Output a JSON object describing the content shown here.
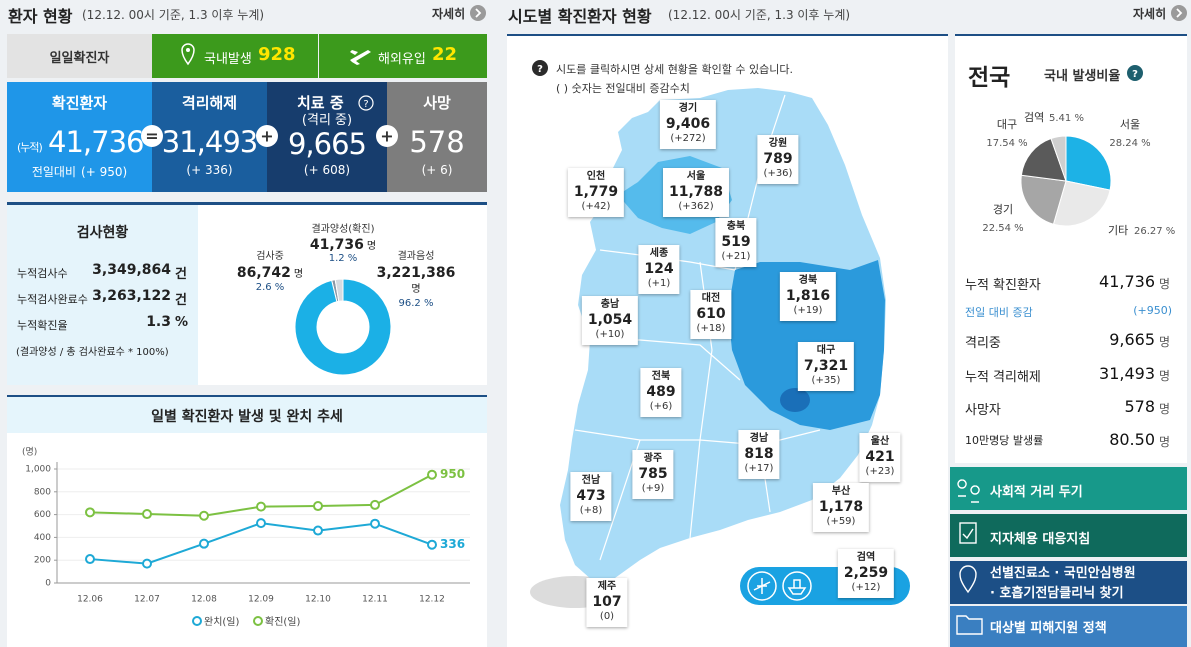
{
  "patient_status": {
    "title": "환자 현황",
    "subtitle": "(12.12. 00시 기준, 1.3 이후 누계)",
    "more": "자세히",
    "daily": {
      "label": "일일확진자",
      "domestic_label": "국내발생",
      "domestic": "928",
      "overseas_label": "해외유입",
      "overseas": "22"
    },
    "boxes": [
      {
        "title": "확진환자",
        "prefix": "(누적)",
        "value": "41,736",
        "delta_label": "전일대비",
        "delta": "(+ 950)"
      },
      {
        "title": "격리해제",
        "value": "31,493",
        "delta": "(+ 336)"
      },
      {
        "title": "치료 중",
        "help": "?",
        "subtitle": "(격리 중)",
        "value": "9,665",
        "delta": "(+ 608)"
      },
      {
        "title": "사망",
        "value": "578",
        "delta": "(+ 6)"
      }
    ],
    "operators": [
      "=",
      "+",
      "+"
    ]
  },
  "tests": {
    "title": "검사현황",
    "rows": [
      {
        "label": "누적검사수",
        "value": "3,349,864",
        "unit": "건"
      },
      {
        "label": "누적검사완료수",
        "value": "3,263,122",
        "unit": "건"
      },
      {
        "label": "누적확진율",
        "value": "1.3",
        "unit": "%"
      }
    ],
    "note": "(결과양성 / 총 검사완료수 * 100%)"
  },
  "chart_data": [
    {
      "type": "pie",
      "donut": true,
      "categories": [
        "결과양성(확진)",
        "검사중",
        "결과음성"
      ],
      "values": [
        1.2,
        2.6,
        96.2
      ],
      "value_labels": [
        "1.2 %",
        "2.6 %",
        "96.2 %"
      ],
      "counts": [
        "41,736",
        "86,742",
        "3,221,386"
      ],
      "count_unit": "명",
      "colors": [
        "#8a97a6",
        "#d6dbe1",
        "#1bb0e6"
      ]
    },
    {
      "type": "line",
      "title": "일별 확진환자 발생 및 완치 추세",
      "y_label": "(명)",
      "categories": [
        "12.06",
        "12.07",
        "12.08",
        "12.09",
        "12.10",
        "12.11",
        "12.12"
      ],
      "series": [
        {
          "name": "완치(일)",
          "color": "#1ea9d6",
          "values": [
            210,
            170,
            345,
            525,
            460,
            520,
            336
          ]
        },
        {
          "name": "확진(일)",
          "color": "#7cc142",
          "values": [
            620,
            605,
            590,
            670,
            675,
            685,
            950
          ]
        }
      ],
      "ylim": [
        0,
        1000
      ],
      "yticks": [
        0,
        200,
        400,
        600,
        800,
        {
          "value": 1000,
          "label": "1,000"
        }
      ],
      "grid": true
    },
    {
      "type": "pie",
      "title": "국내 발생비율",
      "categories": [
        "서울",
        "기타",
        "경기",
        "대구",
        "검역"
      ],
      "values": [
        28.24,
        26.27,
        22.54,
        17.54,
        5.41
      ],
      "value_labels": [
        "28.24 %",
        "26.27 %",
        "22.54 %",
        "17.54 %",
        "5.41 %"
      ],
      "colors": [
        "#1db2e6",
        "#e9e9e9",
        "#a6a6a6",
        "#5a5a5a",
        "#cfcfcf"
      ]
    }
  ],
  "region_status": {
    "title": "시도별 확진환자 현황",
    "subtitle": "(12.12. 00시 기준, 1.3 이후 누계)",
    "more": "자세히",
    "help": "?",
    "note": "시도를 클릭하시면 상세 현황을 확인할 수 있습니다.",
    "note2": "( ) 숫자는 전일대비 증감수치",
    "regions": [
      {
        "name": "경기",
        "count": "9,406",
        "delta": "(+272)"
      },
      {
        "name": "강원",
        "count": "789",
        "delta": "(+36)"
      },
      {
        "name": "인천",
        "count": "1,779",
        "delta": "(+42)"
      },
      {
        "name": "서울",
        "count": "11,788",
        "delta": "(+362)"
      },
      {
        "name": "충북",
        "count": "519",
        "delta": "(+21)"
      },
      {
        "name": "세종",
        "count": "124",
        "delta": "(+1)"
      },
      {
        "name": "경북",
        "count": "1,816",
        "delta": "(+19)"
      },
      {
        "name": "충남",
        "count": "1,054",
        "delta": "(+10)"
      },
      {
        "name": "대전",
        "count": "610",
        "delta": "(+18)"
      },
      {
        "name": "대구",
        "count": "7,321",
        "delta": "(+35)"
      },
      {
        "name": "전북",
        "count": "489",
        "delta": "(+6)"
      },
      {
        "name": "경남",
        "count": "818",
        "delta": "(+17)"
      },
      {
        "name": "울산",
        "count": "421",
        "delta": "(+23)"
      },
      {
        "name": "광주",
        "count": "785",
        "delta": "(+9)"
      },
      {
        "name": "전남",
        "count": "473",
        "delta": "(+8)"
      },
      {
        "name": "부산",
        "count": "1,178",
        "delta": "(+59)"
      },
      {
        "name": "검역",
        "count": "2,259",
        "delta": "(+12)"
      },
      {
        "name": "제주",
        "count": "107",
        "delta": "(0)"
      }
    ]
  },
  "national": {
    "title": "전국",
    "help": "?",
    "rows": [
      {
        "label": "누적 확진환자",
        "value": "41,736",
        "unit": "명"
      },
      {
        "label": "전일 대비 증감",
        "value": "(+950)"
      },
      {
        "label": "격리중",
        "value": "9,665",
        "unit": "명"
      },
      {
        "label": "누적 격리해제",
        "value": "31,493",
        "unit": "명"
      },
      {
        "label": "사망자",
        "value": "578",
        "unit": "명"
      },
      {
        "label": "10만명당 발생률",
        "value": "80.50",
        "unit": "명"
      }
    ],
    "links": [
      {
        "text": [
          "사회적 거리 두기"
        ]
      },
      {
        "text": [
          "지자체용 대응지침"
        ]
      },
      {
        "text": [
          "선별진료소 · 국민안심병원",
          "· 호흡기전담클리닉 찾기"
        ]
      },
      {
        "text": [
          "대상별 피해지원 정책"
        ]
      }
    ]
  }
}
